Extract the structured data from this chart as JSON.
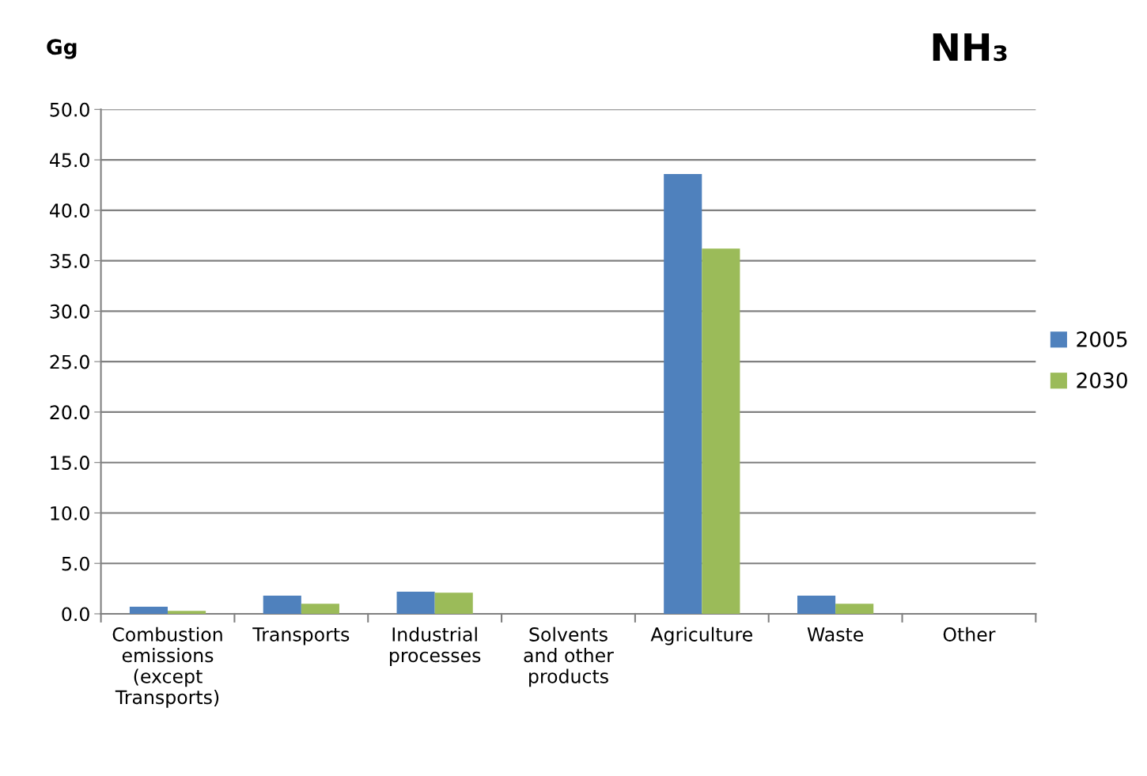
{
  "chart_data": {
    "type": "bar",
    "title": "NH₃",
    "ylabel": "Gg",
    "categories": [
      "Combustion\nemissions\n(except\nTransports)",
      "Transports",
      "Industrial\nprocesses",
      "Solvents\nand other\nproducts",
      "Agriculture",
      "Waste",
      "Other"
    ],
    "series": [
      {
        "name": "2005",
        "color": "#4f81bd",
        "values": [
          0.7,
          1.8,
          2.2,
          0,
          43.6,
          1.8,
          0
        ]
      },
      {
        "name": "2030",
        "color": "#9bbb59",
        "values": [
          0.3,
          1.0,
          2.1,
          0,
          36.2,
          1.0,
          0
        ]
      }
    ],
    "ylim": [
      0,
      50
    ],
    "yticks": [
      {
        "value": 0,
        "label": "0.0"
      },
      {
        "value": 5,
        "label": "5.0"
      },
      {
        "value": 10,
        "label": "10.0"
      },
      {
        "value": 15,
        "label": "15.0"
      },
      {
        "value": 20,
        "label": "20.0"
      },
      {
        "value": 25,
        "label": "25.0"
      },
      {
        "value": 30,
        "label": "30.0"
      },
      {
        "value": 35,
        "label": "35.0"
      },
      {
        "value": 40,
        "label": "40.0"
      },
      {
        "value": 45,
        "label": "45.0"
      },
      {
        "value": 50,
        "label": "50.0"
      }
    ],
    "grid": "y",
    "legend": "right"
  }
}
